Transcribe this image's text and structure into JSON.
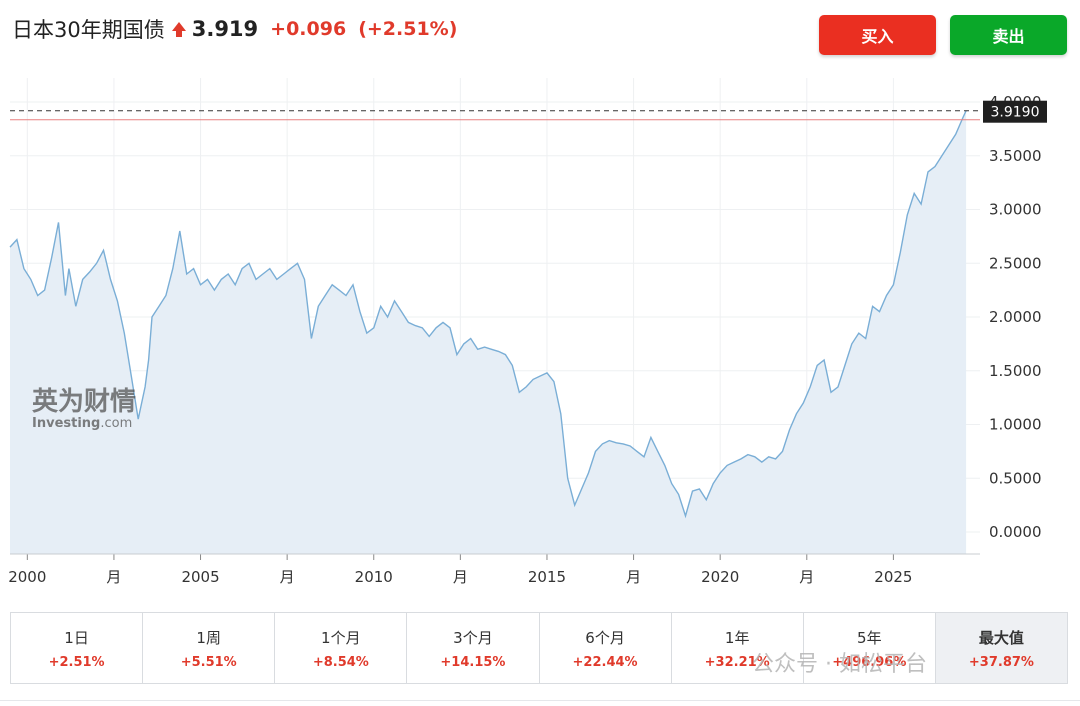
{
  "header": {
    "title": "日本30年期国债",
    "price": "3.919",
    "change": "+0.096",
    "change_pct": "(+2.51%)"
  },
  "buttons": {
    "buy": "买入",
    "sell": "卖出"
  },
  "colors": {
    "up": "#e03a2b",
    "buy": "#ea2f21",
    "sell": "#0aa829",
    "line": "#7aaed6",
    "fill": "#e6eef6"
  },
  "watermark": {
    "cn": "英为财情",
    "en": "Investing",
    "suffix": ".com"
  },
  "social_watermark": "公众号 · 如松平台",
  "periods": [
    {
      "label": "1日",
      "value": "+2.51%"
    },
    {
      "label": "1周",
      "value": "+5.51%"
    },
    {
      "label": "1个月",
      "value": "+8.54%"
    },
    {
      "label": "3个月",
      "value": "+14.15%"
    },
    {
      "label": "6个月",
      "value": "+22.44%"
    },
    {
      "label": "1年",
      "value": "+32.21%"
    },
    {
      "label": "5年",
      "value": "+496.96%"
    },
    {
      "label": "最大值",
      "value": "+37.87%"
    }
  ],
  "chart_data": {
    "type": "area",
    "title": "",
    "xlabel": "",
    "ylabel": "",
    "ylim": [
      0,
      4
    ],
    "xlim": [
      1999.5,
      2027.5
    ],
    "grid": true,
    "current_label": "3.9190",
    "y_ticks": [
      "0.0000",
      "0.5000",
      "1.0000",
      "1.5000",
      "2.0000",
      "2.5000",
      "3.0000",
      "3.5000",
      "4.0000"
    ],
    "x_ticks": [
      {
        "x": 2000,
        "label": "2000"
      },
      {
        "x": 2002.5,
        "label": "月"
      },
      {
        "x": 2005,
        "label": "2005"
      },
      {
        "x": 2007.5,
        "label": "月"
      },
      {
        "x": 2010,
        "label": "2010"
      },
      {
        "x": 2012.5,
        "label": "月"
      },
      {
        "x": 2015,
        "label": "2015"
      },
      {
        "x": 2017.5,
        "label": "月"
      },
      {
        "x": 2020,
        "label": "2020"
      },
      {
        "x": 2022.5,
        "label": "月"
      },
      {
        "x": 2025,
        "label": "2025"
      }
    ],
    "series": [
      {
        "x": [
          1999.5,
          1999.7,
          1999.9,
          2000.1,
          2000.3,
          2000.5,
          2000.7,
          2000.9,
          2001.1,
          2001.2,
          2001.4,
          2001.6,
          2001.8,
          2002.0,
          2002.2,
          2002.4,
          2002.6,
          2002.8,
          2003.0,
          2003.2,
          2003.4,
          2003.5,
          2003.6,
          2003.8,
          2004.0,
          2004.2,
          2004.4,
          2004.6,
          2004.8,
          2005.0,
          2005.2,
          2005.4,
          2005.6,
          2005.8,
          2006.0,
          2006.2,
          2006.4,
          2006.6,
          2006.8,
          2007.0,
          2007.2,
          2007.4,
          2007.6,
          2007.8,
          2008.0,
          2008.2,
          2008.4,
          2008.6,
          2008.8,
          2009.0,
          2009.2,
          2009.4,
          2009.6,
          2009.8,
          2010.0,
          2010.2,
          2010.4,
          2010.6,
          2010.8,
          2011.0,
          2011.2,
          2011.4,
          2011.6,
          2011.8,
          2012.0,
          2012.2,
          2012.4,
          2012.6,
          2012.8,
          2013.0,
          2013.2,
          2013.4,
          2013.6,
          2013.8,
          2014.0,
          2014.2,
          2014.4,
          2014.6,
          2014.8,
          2015.0,
          2015.2,
          2015.4,
          2015.6,
          2015.8,
          2016.0,
          2016.2,
          2016.4,
          2016.6,
          2016.8,
          2017.0,
          2017.2,
          2017.4,
          2017.6,
          2017.8,
          2018.0,
          2018.2,
          2018.4,
          2018.6,
          2018.8,
          2019.0,
          2019.2,
          2019.4,
          2019.6,
          2019.8,
          2020.0,
          2020.2,
          2020.4,
          2020.6,
          2020.8,
          2021.0,
          2021.2,
          2021.4,
          2021.6,
          2021.8,
          2022.0,
          2022.2,
          2022.4,
          2022.6,
          2022.8,
          2023.0,
          2023.2,
          2023.4,
          2023.6,
          2023.8,
          2024.0,
          2024.2,
          2024.4,
          2024.6,
          2024.8,
          2025.0,
          2025.2,
          2025.4,
          2025.6,
          2025.8,
          2026.0,
          2026.2,
          2026.4,
          2026.6,
          2026.8,
          2027.0,
          2027.1
        ],
        "values": [
          2.65,
          2.72,
          2.45,
          2.35,
          2.2,
          2.25,
          2.55,
          2.88,
          2.2,
          2.45,
          2.1,
          2.35,
          2.42,
          2.5,
          2.62,
          2.35,
          2.15,
          1.85,
          1.45,
          1.05,
          1.35,
          1.6,
          2.0,
          2.1,
          2.2,
          2.45,
          2.8,
          2.4,
          2.45,
          2.3,
          2.35,
          2.25,
          2.35,
          2.4,
          2.3,
          2.45,
          2.5,
          2.35,
          2.4,
          2.45,
          2.35,
          2.4,
          2.45,
          2.5,
          2.35,
          1.8,
          2.1,
          2.2,
          2.3,
          2.25,
          2.2,
          2.3,
          2.05,
          1.85,
          1.9,
          2.1,
          2.0,
          2.15,
          2.05,
          1.95,
          1.92,
          1.9,
          1.82,
          1.9,
          1.95,
          1.9,
          1.65,
          1.75,
          1.8,
          1.7,
          1.72,
          1.7,
          1.68,
          1.65,
          1.55,
          1.3,
          1.35,
          1.42,
          1.45,
          1.48,
          1.4,
          1.1,
          0.5,
          0.25,
          0.4,
          0.55,
          0.75,
          0.82,
          0.85,
          0.83,
          0.82,
          0.8,
          0.75,
          0.7,
          0.88,
          0.75,
          0.62,
          0.45,
          0.35,
          0.15,
          0.38,
          0.4,
          0.3,
          0.45,
          0.55,
          0.62,
          0.65,
          0.68,
          0.72,
          0.7,
          0.65,
          0.7,
          0.68,
          0.75,
          0.95,
          1.1,
          1.2,
          1.35,
          1.55,
          1.6,
          1.3,
          1.35,
          1.55,
          1.75,
          1.85,
          1.8,
          2.1,
          2.05,
          2.2,
          2.3,
          2.6,
          2.95,
          3.15,
          3.05,
          3.35,
          3.4,
          3.5,
          3.6,
          3.7,
          3.85,
          3.919
        ]
      }
    ]
  }
}
